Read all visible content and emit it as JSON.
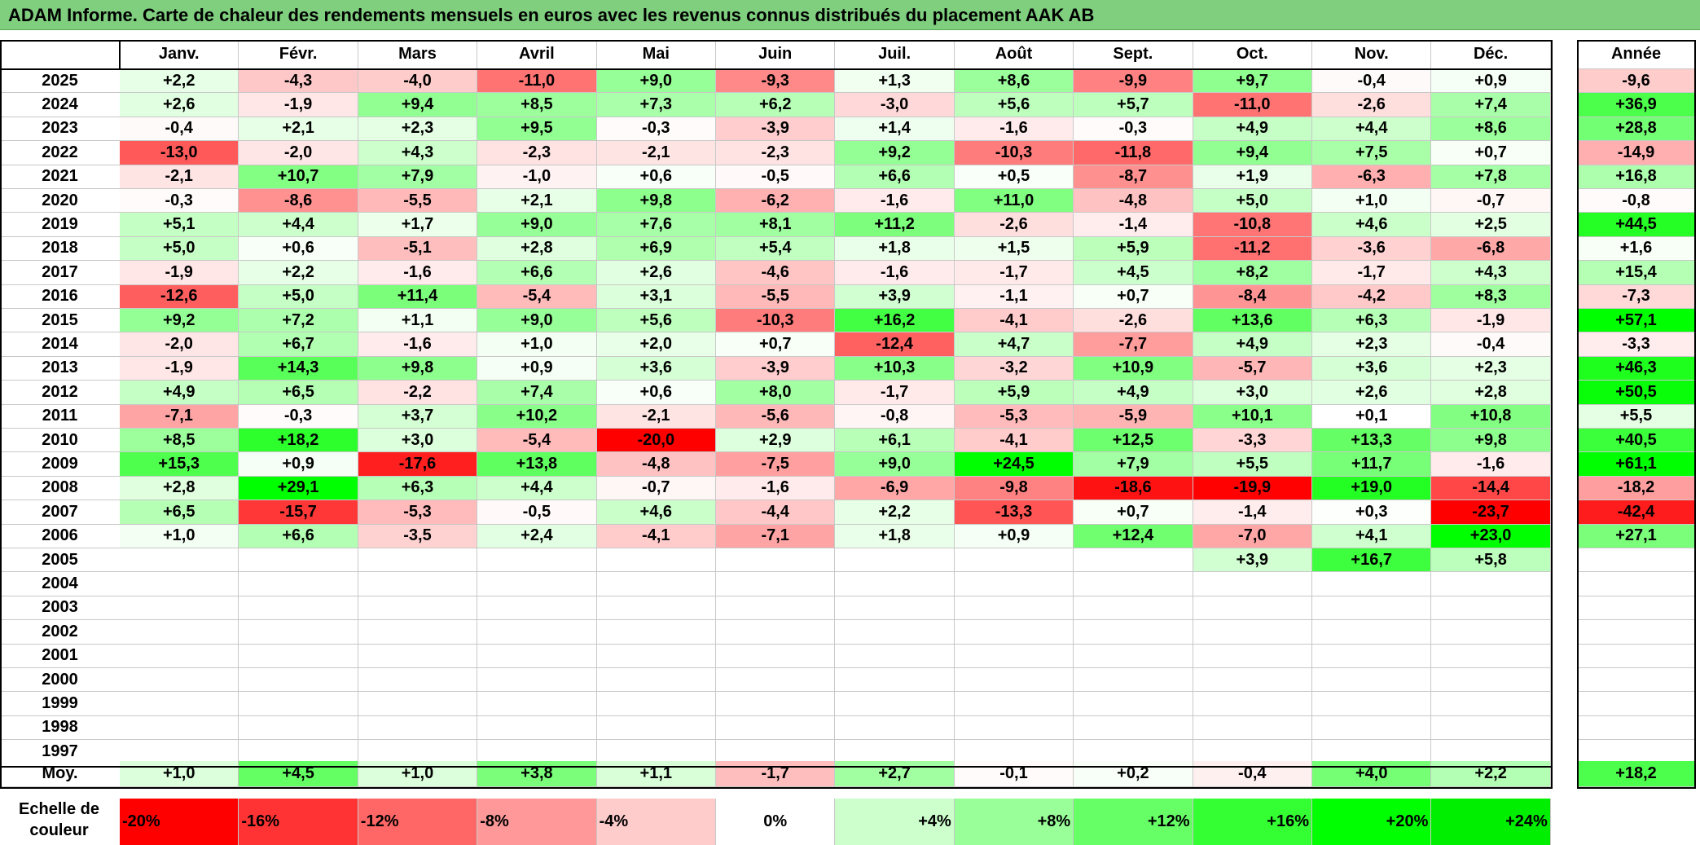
{
  "title": "ADAM Informe. Carte de chaleur des rendements mensuels en euros avec les revenus connus distribués du placement AAK AB",
  "chart_data": {
    "type": "heatmap",
    "title": "ADAM Informe. Carte de chaleur des rendements mensuels en euros avec les revenus connus distribués du placement AAK AB",
    "months": [
      "Janv.",
      "Févr.",
      "Mars",
      "Avril",
      "Mai",
      "Juin",
      "Juil.",
      "Août",
      "Sept.",
      "Oct.",
      "Nov.",
      "Déc."
    ],
    "year_header": "Année",
    "rows": [
      {
        "year": "2025",
        "values": [
          "+2,2",
          "-4,3",
          "-4,0",
          "-11,0",
          "+9,0",
          "-9,3",
          "+1,3",
          "+8,6",
          "-9,9",
          "+9,7",
          "-0,4",
          "+0,9"
        ],
        "annual": "-9,6"
      },
      {
        "year": "2024",
        "values": [
          "+2,6",
          "-1,9",
          "+9,4",
          "+8,5",
          "+7,3",
          "+6,2",
          "-3,0",
          "+5,6",
          "+5,7",
          "-11,0",
          "-2,6",
          "+7,4"
        ],
        "annual": "+36,9"
      },
      {
        "year": "2023",
        "values": [
          "-0,4",
          "+2,1",
          "+2,3",
          "+9,5",
          "-0,3",
          "-3,9",
          "+1,4",
          "-1,6",
          "-0,3",
          "+4,9",
          "+4,4",
          "+8,6"
        ],
        "annual": "+28,8"
      },
      {
        "year": "2022",
        "values": [
          "-13,0",
          "-2,0",
          "+4,3",
          "-2,3",
          "-2,1",
          "-2,3",
          "+9,2",
          "-10,3",
          "-11,8",
          "+9,4",
          "+7,5",
          "+0,7"
        ],
        "annual": "-14,9"
      },
      {
        "year": "2021",
        "values": [
          "-2,1",
          "+10,7",
          "+7,9",
          "-1,0",
          "+0,6",
          "-0,5",
          "+6,6",
          "+0,5",
          "-8,7",
          "+1,9",
          "-6,3",
          "+7,8"
        ],
        "annual": "+16,8"
      },
      {
        "year": "2020",
        "values": [
          "-0,3",
          "-8,6",
          "-5,5",
          "+2,1",
          "+9,8",
          "-6,2",
          "-1,6",
          "+11,0",
          "-4,8",
          "+5,0",
          "+1,0",
          "-0,7"
        ],
        "annual": "-0,8"
      },
      {
        "year": "2019",
        "values": [
          "+5,1",
          "+4,4",
          "+1,7",
          "+9,0",
          "+7,6",
          "+8,1",
          "+11,2",
          "-2,6",
          "-1,4",
          "-10,8",
          "+4,6",
          "+2,5"
        ],
        "annual": "+44,5"
      },
      {
        "year": "2018",
        "values": [
          "+5,0",
          "+0,6",
          "-5,1",
          "+2,8",
          "+6,9",
          "+5,4",
          "+1,8",
          "+1,5",
          "+5,9",
          "-11,2",
          "-3,6",
          "-6,8"
        ],
        "annual": "+1,6"
      },
      {
        "year": "2017",
        "values": [
          "-1,9",
          "+2,2",
          "-1,6",
          "+6,6",
          "+2,6",
          "-4,6",
          "-1,6",
          "-1,7",
          "+4,5",
          "+8,2",
          "-1,7",
          "+4,3"
        ],
        "annual": "+15,4"
      },
      {
        "year": "2016",
        "values": [
          "-12,6",
          "+5,0",
          "+11,4",
          "-5,4",
          "+3,1",
          "-5,5",
          "+3,9",
          "-1,1",
          "+0,7",
          "-8,4",
          "-4,2",
          "+8,3"
        ],
        "annual": "-7,3"
      },
      {
        "year": "2015",
        "values": [
          "+9,2",
          "+7,2",
          "+1,1",
          "+9,0",
          "+5,6",
          "-10,3",
          "+16,2",
          "-4,1",
          "-2,6",
          "+13,6",
          "+6,3",
          "-1,9"
        ],
        "annual": "+57,1"
      },
      {
        "year": "2014",
        "values": [
          "-2,0",
          "+6,7",
          "-1,6",
          "+1,0",
          "+2,0",
          "+0,7",
          "-12,4",
          "+4,7",
          "-7,7",
          "+4,9",
          "+2,3",
          "-0,4"
        ],
        "annual": "-3,3"
      },
      {
        "year": "2013",
        "values": [
          "-1,9",
          "+14,3",
          "+9,8",
          "+0,9",
          "+3,6",
          "-3,9",
          "+10,3",
          "-3,2",
          "+10,9",
          "-5,7",
          "+3,6",
          "+2,3"
        ],
        "annual": "+46,3"
      },
      {
        "year": "2012",
        "values": [
          "+4,9",
          "+6,5",
          "-2,2",
          "+7,4",
          "+0,6",
          "+8,0",
          "-1,7",
          "+5,9",
          "+4,9",
          "+3,0",
          "+2,6",
          "+2,8"
        ],
        "annual": "+50,5"
      },
      {
        "year": "2011",
        "values": [
          "-7,1",
          "-0,3",
          "+3,7",
          "+10,2",
          "-2,1",
          "-5,6",
          "-0,8",
          "-5,3",
          "-5,9",
          "+10,1",
          "+0,1",
          "+10,8"
        ],
        "annual": "+5,5"
      },
      {
        "year": "2010",
        "values": [
          "+8,5",
          "+18,2",
          "+3,0",
          "-5,4",
          "-20,0",
          "+2,9",
          "+6,1",
          "-4,1",
          "+12,5",
          "-3,3",
          "+13,3",
          "+9,8"
        ],
        "annual": "+40,5"
      },
      {
        "year": "2009",
        "values": [
          "+15,3",
          "+0,9",
          "-17,6",
          "+13,8",
          "-4,8",
          "-7,5",
          "+9,0",
          "+24,5",
          "+7,9",
          "+5,5",
          "+11,7",
          "-1,6"
        ],
        "annual": "+61,1"
      },
      {
        "year": "2008",
        "values": [
          "+2,8",
          "+29,1",
          "+6,3",
          "+4,4",
          "-0,7",
          "-1,6",
          "-6,9",
          "-9,8",
          "-18,6",
          "-19,9",
          "+19,0",
          "-14,4"
        ],
        "annual": "-18,2"
      },
      {
        "year": "2007",
        "values": [
          "+6,5",
          "-15,7",
          "-5,3",
          "-0,5",
          "+4,6",
          "-4,4",
          "+2,2",
          "-13,3",
          "+0,7",
          "-1,4",
          "+0,3",
          "-23,7"
        ],
        "annual": "-42,4"
      },
      {
        "year": "2006",
        "values": [
          "+1,0",
          "+6,6",
          "-3,5",
          "+2,4",
          "-4,1",
          "-7,1",
          "+1,8",
          "+0,9",
          "+12,4",
          "-7,0",
          "+4,1",
          "+23,0"
        ],
        "annual": "+27,1"
      },
      {
        "year": "2005",
        "values": [
          "",
          "",
          "",
          "",
          "",
          "",
          "",
          "",
          "",
          "+3,9",
          "+16,7",
          "+5,8"
        ],
        "annual": ""
      },
      {
        "year": "2004",
        "values": [
          "",
          "",
          "",
          "",
          "",
          "",
          "",
          "",
          "",
          "",
          "",
          ""
        ],
        "annual": ""
      },
      {
        "year": "2003",
        "values": [
          "",
          "",
          "",
          "",
          "",
          "",
          "",
          "",
          "",
          "",
          "",
          ""
        ],
        "annual": ""
      },
      {
        "year": "2002",
        "values": [
          "",
          "",
          "",
          "",
          "",
          "",
          "",
          "",
          "",
          "",
          "",
          ""
        ],
        "annual": ""
      },
      {
        "year": "2001",
        "values": [
          "",
          "",
          "",
          "",
          "",
          "",
          "",
          "",
          "",
          "",
          "",
          ""
        ],
        "annual": ""
      },
      {
        "year": "2000",
        "values": [
          "",
          "",
          "",
          "",
          "",
          "",
          "",
          "",
          "",
          "",
          "",
          ""
        ],
        "annual": ""
      },
      {
        "year": "1999",
        "values": [
          "",
          "",
          "",
          "",
          "",
          "",
          "",
          "",
          "",
          "",
          "",
          ""
        ],
        "annual": ""
      },
      {
        "year": "1998",
        "values": [
          "",
          "",
          "",
          "",
          "",
          "",
          "",
          "",
          "",
          "",
          "",
          ""
        ],
        "annual": ""
      },
      {
        "year": "1997",
        "values": [
          "",
          "",
          "",
          "",
          "",
          "",
          "",
          "",
          "",
          "",
          "",
          ""
        ],
        "annual": ""
      }
    ],
    "average": {
      "label": "Moy.",
      "values": [
        "+1,0",
        "+4,5",
        "+1,0",
        "+3,8",
        "+1,1",
        "-1,7",
        "+2,7",
        "-0,1",
        "+0,2",
        "-0,4",
        "+4,0",
        "+2,2"
      ],
      "annual": "+18,2"
    },
    "scale": {
      "label_line1": "Echelle de",
      "label_line2": "couleur",
      "steps": [
        {
          "label": "-20%",
          "value": -20,
          "color": "#ff0000"
        },
        {
          "label": "-16%",
          "value": -16,
          "color": "#ff3333"
        },
        {
          "label": "-12%",
          "value": -12,
          "color": "#ff6666"
        },
        {
          "label": "-8%",
          "value": -8,
          "color": "#ff9999"
        },
        {
          "label": "-4%",
          "value": -4,
          "color": "#ffcccc"
        },
        {
          "label": "0%",
          "value": 0,
          "color": "#ffffff"
        },
        {
          "label": "+4%",
          "value": 4,
          "color": "#ccffcc"
        },
        {
          "label": "+8%",
          "value": 8,
          "color": "#99ff99"
        },
        {
          "label": "+12%",
          "value": 12,
          "color": "#66ff66"
        },
        {
          "label": "+16%",
          "value": 16,
          "color": "#33ff33"
        },
        {
          "label": "+20%",
          "value": 20,
          "color": "#00ff00"
        },
        {
          "label": "+24%",
          "value": 24,
          "color": "#00ee00"
        }
      ]
    }
  }
}
